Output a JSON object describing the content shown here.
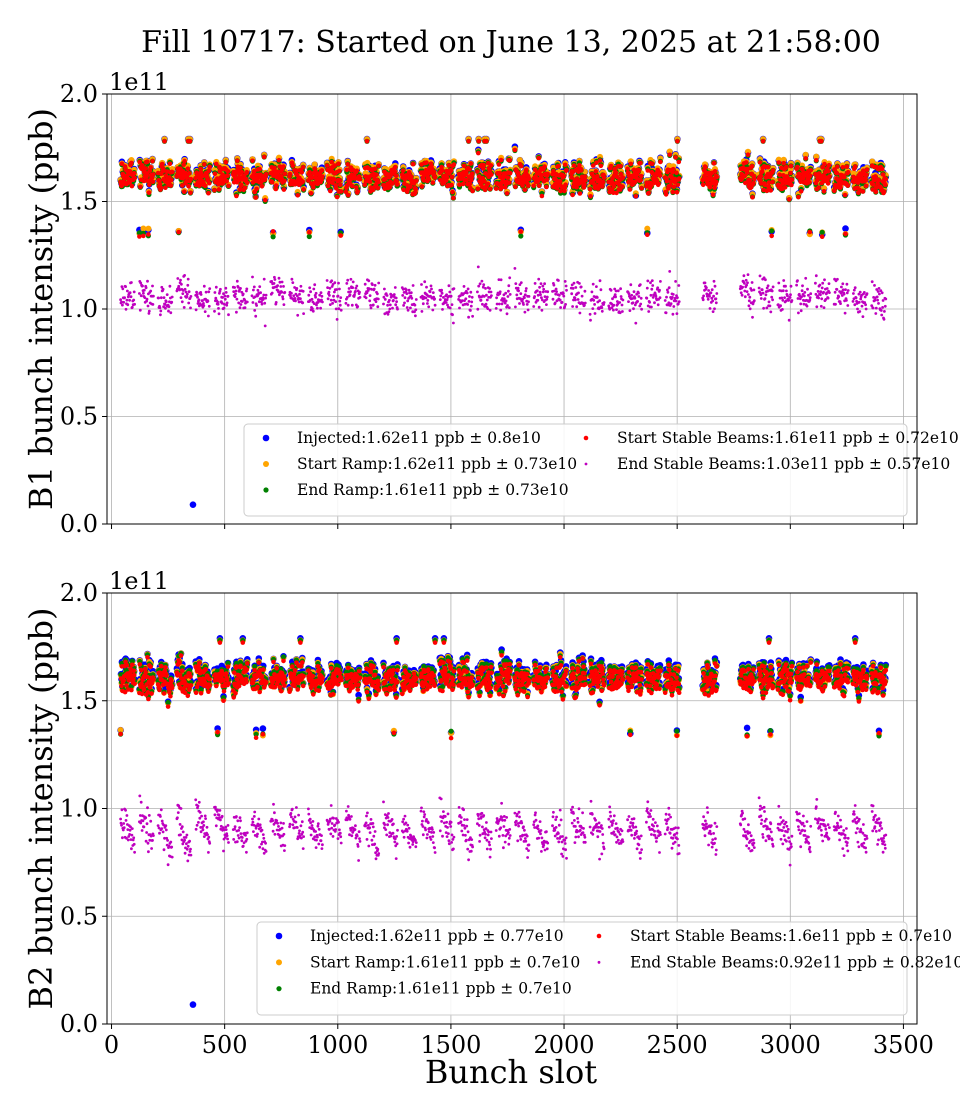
{
  "figure": {
    "title": "Fill 10717: Started on June 13, 2025 at 21:58:00",
    "xlabel": "Bunch slot"
  },
  "chart_data": [
    {
      "type": "scatter",
      "panel": "B1",
      "ylabel": "B1 bunch intensity (ppb)",
      "offset_label": "1e11",
      "xlim": [
        -20,
        3560
      ],
      "ylim": [
        0.0,
        2.0
      ],
      "xticks": [
        "0",
        "500",
        "1000",
        "1500",
        "2000",
        "2500",
        "3000",
        "3500"
      ],
      "yticks": [
        "0.0",
        "0.5",
        "1.0",
        "1.5",
        "2.0"
      ],
      "grid": true,
      "legend_position": "lower-right",
      "series": [
        {
          "name": "Injected:1.62e11 ppb ± 0.8e10",
          "color": "#0000ff",
          "mean": 1.62,
          "std": 0.08,
          "outlier": [
            360,
            0.09
          ]
        },
        {
          "name": "Start Ramp:1.62e11 ppb ± 0.73e10",
          "color": "#ffa500",
          "mean": 1.62,
          "std": 0.073
        },
        {
          "name": "End Ramp:1.61e11 ppb ± 0.73e10",
          "color": "#008000",
          "mean": 1.61,
          "std": 0.073
        },
        {
          "name": "Start Stable Beams:1.61e11 ppb ± 0.72e10",
          "color": "#ff0000",
          "mean": 1.61,
          "std": 0.072
        },
        {
          "name": "End Stable Beams:1.03e11 ppb ± 0.57e10",
          "color": "#bf00bf",
          "mean": 1.03,
          "std": 0.057
        }
      ]
    },
    {
      "type": "scatter",
      "panel": "B2",
      "ylabel": "B2 bunch intensity (ppb)",
      "offset_label": "1e11",
      "xlim": [
        -20,
        3560
      ],
      "ylim": [
        0.0,
        2.0
      ],
      "xticks": [
        "0",
        "500",
        "1000",
        "1500",
        "2000",
        "2500",
        "3000",
        "3500"
      ],
      "yticks": [
        "0.0",
        "0.5",
        "1.0",
        "1.5",
        "2.0"
      ],
      "grid": true,
      "legend_position": "lower-right",
      "series": [
        {
          "name": "Injected:1.62e11 ppb ± 0.77e10",
          "color": "#0000ff",
          "mean": 1.62,
          "std": 0.077,
          "outlier": [
            360,
            0.09
          ]
        },
        {
          "name": "Start Ramp:1.61e11 ppb ± 0.7e10",
          "color": "#ffa500",
          "mean": 1.61,
          "std": 0.07
        },
        {
          "name": "End Ramp:1.61e11 ppb ± 0.7e10",
          "color": "#008000",
          "mean": 1.61,
          "std": 0.07
        },
        {
          "name": "Start Stable Beams:1.6e11 ppb ± 0.7e10",
          "color": "#ff0000",
          "mean": 1.6,
          "std": 0.07
        },
        {
          "name": "End Stable Beams:0.92e11 ppb ± 0.82e10",
          "color": "#bf00bf",
          "mean": 0.92,
          "std": 0.082
        }
      ]
    }
  ]
}
